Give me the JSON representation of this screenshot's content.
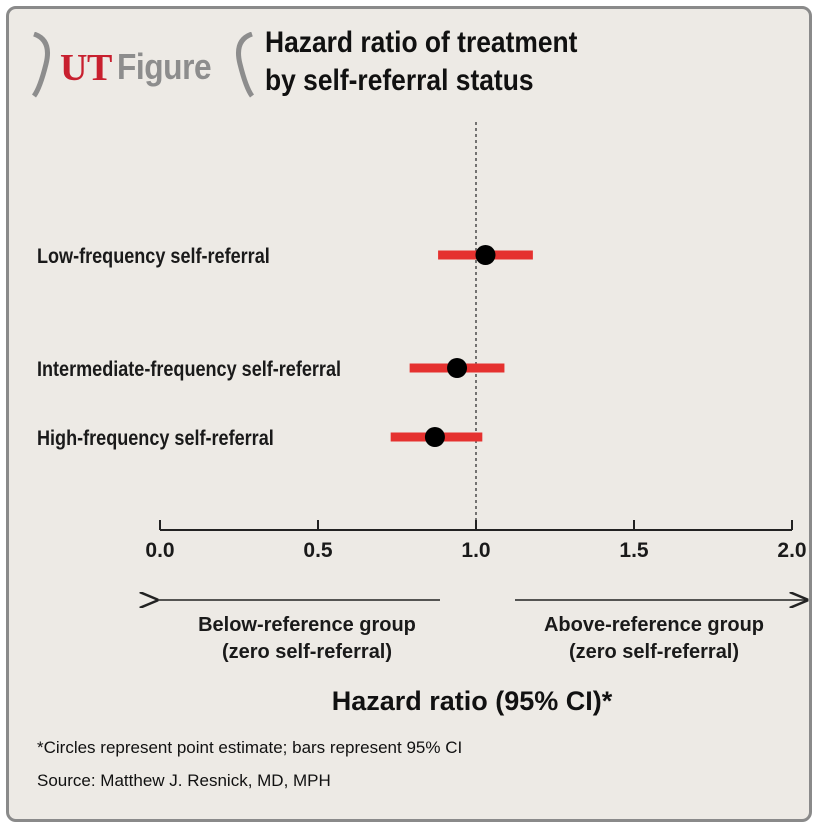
{
  "brand": {
    "ut": "UT",
    "figure": "Figure"
  },
  "title_lines": [
    "Hazard ratio of treatment",
    "by self-referral status"
  ],
  "colors": {
    "ci_bar": "#e5312f",
    "point": "#000000",
    "background": "#edeae5",
    "brand_red": "#c8202f"
  },
  "chart_data": {
    "type": "forest",
    "title": "Hazard ratio of treatment by self-referral status",
    "xlabel": "Hazard ratio (95% CI)*",
    "xlim": [
      0.0,
      2.0
    ],
    "xticks": [
      "0.0",
      "0.5",
      "1.0",
      "1.5",
      "2.0"
    ],
    "reference_line": 1.0,
    "rows": [
      {
        "label": "Low-frequency self-referral",
        "estimate": 1.03,
        "ci_low": 0.88,
        "ci_high": 1.18
      },
      {
        "label": "Intermediate-frequency self-referral",
        "estimate": 0.94,
        "ci_low": 0.79,
        "ci_high": 1.09
      },
      {
        "label": "High-frequency self-referral",
        "estimate": 0.87,
        "ci_low": 0.73,
        "ci_high": 1.02
      }
    ],
    "direction_left": [
      "Below-reference group",
      "(zero self-referral)"
    ],
    "direction_right": [
      "Above-reference group",
      "(zero self-referral)"
    ]
  },
  "footnote": "*Circles represent point estimate; bars represent 95% CI",
  "source": "Source: Matthew J. Resnick, MD, MPH"
}
